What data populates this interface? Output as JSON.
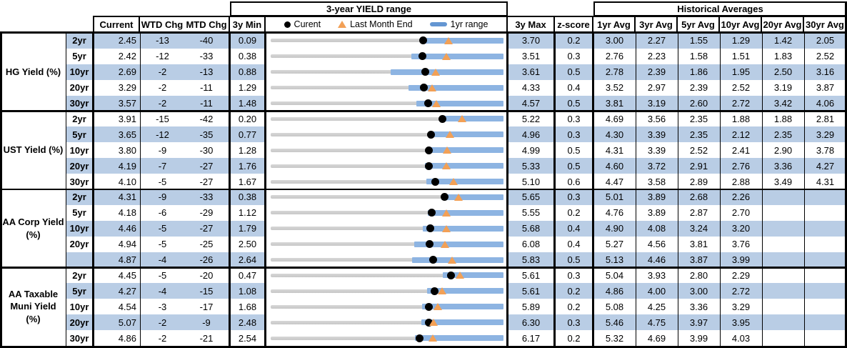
{
  "header": {
    "chart_title": "3-year YIELD range",
    "historical_title": "Historical Averages",
    "col_current": "Current",
    "col_wtd": "WTD Chg",
    "col_mtd": "MTD Chg",
    "col_min": "3y Min",
    "col_max": "3y Max",
    "col_z": "z-score",
    "avg_cols": [
      "1yr Avg",
      "3yr Avg",
      "5yr Avg",
      "10yr Avg",
      "20yr Avg",
      "30yr Avg"
    ],
    "legend_current": "Curent",
    "legend_last_month": "Last Month End",
    "legend_range": "1yr range"
  },
  "colors": {
    "stripe": "#b9cde5",
    "bar": "#8db4e2",
    "track": "#c8c8c8",
    "dot": "#000000",
    "triangle": "#f2a056",
    "legend_bar": "#6496d2",
    "border": "#000000"
  },
  "chart_data": {
    "type": "table",
    "note": "Each row also renders a dot-range strip: gray track spans 3y Min to 3y Max, blue bar is 1yr range, black dot is Current, orange triangle is Last Month End.",
    "groups": [
      {
        "label": "HG Yield (%)",
        "label_lines": [
          "HG Yield (%)"
        ],
        "rows": [
          {
            "tenor": "2yr",
            "current": "2.45",
            "wtd": "-13",
            "mtd": "-40",
            "min": "0.09",
            "max": "3.70",
            "z": "0.2",
            "avgs": [
              "3.00",
              "2.27",
              "1.55",
              "1.29",
              "1.42",
              "2.05"
            ],
            "marks": {
              "current": 2.45,
              "last_month_end": 2.85,
              "yr1_low": 2.45,
              "yr1_high": 3.7
            }
          },
          {
            "tenor": "5yr",
            "current": "2.42",
            "wtd": "-12",
            "mtd": "-33",
            "min": "0.38",
            "max": "3.51",
            "z": "0.3",
            "avgs": [
              "2.76",
              "2.23",
              "1.58",
              "1.51",
              "1.83",
              "2.52"
            ],
            "marks": {
              "current": 2.42,
              "last_month_end": 2.75,
              "yr1_low": 2.27,
              "yr1_high": 3.51
            }
          },
          {
            "tenor": "10yr",
            "current": "2.69",
            "wtd": "-2",
            "mtd": "-13",
            "min": "0.88",
            "max": "3.61",
            "z": "0.5",
            "avgs": [
              "2.78",
              "2.39",
              "1.86",
              "1.95",
              "2.50",
              "3.16"
            ],
            "marks": {
              "current": 2.69,
              "last_month_end": 2.82,
              "yr1_low": 2.29,
              "yr1_high": 3.61
            }
          },
          {
            "tenor": "20yr",
            "current": "3.29",
            "wtd": "-2",
            "mtd": "-11",
            "min": "1.29",
            "max": "4.33",
            "z": "0.4",
            "avgs": [
              "3.52",
              "2.97",
              "2.39",
              "2.52",
              "3.19",
              "3.87"
            ],
            "marks": {
              "current": 3.29,
              "last_month_end": 3.4,
              "yr1_low": 3.09,
              "yr1_high": 4.33
            }
          },
          {
            "tenor": "30yr",
            "current": "3.57",
            "wtd": "-2",
            "mtd": "-11",
            "min": "1.48",
            "max": "4.57",
            "z": "0.5",
            "avgs": [
              "3.81",
              "3.19",
              "2.60",
              "2.72",
              "3.42",
              "4.06"
            ],
            "marks": {
              "current": 3.57,
              "last_month_end": 3.68,
              "yr1_low": 3.41,
              "yr1_high": 4.57
            }
          }
        ]
      },
      {
        "label": "UST Yield (%)",
        "label_lines": [
          "UST Yield (%)"
        ],
        "rows": [
          {
            "tenor": "2yr",
            "current": "3.91",
            "wtd": "-15",
            "mtd": "-42",
            "min": "0.20",
            "max": "5.22",
            "z": "0.3",
            "avgs": [
              "4.69",
              "3.56",
              "2.35",
              "1.88",
              "1.88",
              "2.81"
            ],
            "marks": {
              "current": 3.91,
              "last_month_end": 4.33,
              "yr1_low": 3.86,
              "yr1_high": 5.22
            }
          },
          {
            "tenor": "5yr",
            "current": "3.65",
            "wtd": "-12",
            "mtd": "-35",
            "min": "0.77",
            "max": "4.96",
            "z": "0.3",
            "avgs": [
              "4.30",
              "3.39",
              "2.35",
              "2.12",
              "2.35",
              "3.29"
            ],
            "marks": {
              "current": 3.65,
              "last_month_end": 4.0,
              "yr1_low": 3.63,
              "yr1_high": 4.96
            }
          },
          {
            "tenor": "10yr",
            "current": "3.80",
            "wtd": "-9",
            "mtd": "-30",
            "min": "1.28",
            "max": "4.99",
            "z": "0.5",
            "avgs": [
              "4.31",
              "3.39",
              "2.52",
              "2.41",
              "2.90",
              "3.78"
            ],
            "marks": {
              "current": 3.8,
              "last_month_end": 4.1,
              "yr1_low": 3.79,
              "yr1_high": 4.99
            }
          },
          {
            "tenor": "20yr",
            "current": "4.19",
            "wtd": "-7",
            "mtd": "-27",
            "min": "1.76",
            "max": "5.33",
            "z": "0.5",
            "avgs": [
              "4.60",
              "3.72",
              "2.91",
              "2.76",
              "3.36",
              "4.27"
            ],
            "marks": {
              "current": 4.19,
              "last_month_end": 4.46,
              "yr1_low": 4.13,
              "yr1_high": 5.33
            }
          },
          {
            "tenor": "30yr",
            "current": "4.10",
            "wtd": "-5",
            "mtd": "-27",
            "min": "1.67",
            "max": "5.10",
            "z": "0.6",
            "avgs": [
              "4.47",
              "3.58",
              "2.89",
              "2.88",
              "3.49",
              "4.31"
            ],
            "marks": {
              "current": 4.1,
              "last_month_end": 4.37,
              "yr1_low": 3.96,
              "yr1_high": 5.1
            }
          }
        ]
      },
      {
        "label": "AA Corp Yield (%)",
        "label_lines": [
          "AA Corp Yield",
          "(%)"
        ],
        "rows": [
          {
            "tenor": "2yr",
            "current": "4.31",
            "wtd": "-9",
            "mtd": "-33",
            "min": "0.38",
            "max": "5.65",
            "z": "0.3",
            "avgs": [
              "5.01",
              "3.89",
              "2.68",
              "2.26",
              "",
              ""
            ],
            "marks": {
              "current": 4.31,
              "last_month_end": 4.64,
              "yr1_low": 4.24,
              "yr1_high": 5.65
            }
          },
          {
            "tenor": "5yr",
            "current": "4.18",
            "wtd": "-6",
            "mtd": "-29",
            "min": "1.12",
            "max": "5.55",
            "z": "0.2",
            "avgs": [
              "4.76",
              "3.89",
              "2.87",
              "2.70",
              "",
              ""
            ],
            "marks": {
              "current": 4.18,
              "last_month_end": 4.47,
              "yr1_low": 4.11,
              "yr1_high": 5.55
            }
          },
          {
            "tenor": "10yr",
            "current": "4.46",
            "wtd": "-5",
            "mtd": "-27",
            "min": "1.79",
            "max": "5.68",
            "z": "0.4",
            "avgs": [
              "4.90",
              "4.08",
              "3.24",
              "3.20",
              "",
              ""
            ],
            "marks": {
              "current": 4.46,
              "last_month_end": 4.73,
              "yr1_low": 4.33,
              "yr1_high": 5.68
            }
          },
          {
            "tenor": "20yr",
            "current": "4.94",
            "wtd": "-5",
            "mtd": "-25",
            "min": "2.50",
            "max": "6.08",
            "z": "0.4",
            "avgs": [
              "5.27",
              "4.56",
              "3.81",
              "3.76",
              "",
              ""
            ],
            "marks": {
              "current": 4.94,
              "last_month_end": 5.19,
              "yr1_low": 4.71,
              "yr1_high": 6.08
            }
          },
          {
            "tenor": "",
            "current": "4.87",
            "wtd": "-4",
            "mtd": "-26",
            "min": "2.64",
            "max": "5.83",
            "z": "0.5",
            "avgs": [
              "5.13",
              "4.46",
              "3.87",
              "3.99",
              "",
              ""
            ],
            "marks": {
              "current": 4.87,
              "last_month_end": 5.13,
              "yr1_low": 4.58,
              "yr1_high": 5.83
            }
          }
        ]
      },
      {
        "label": "AA Taxable Muni Yield (%)",
        "label_lines": [
          "AA Taxable",
          "Muni Yield",
          "(%)"
        ],
        "rows": [
          {
            "tenor": "2yr",
            "current": "4.45",
            "wtd": "-5",
            "mtd": "-20",
            "min": "0.47",
            "max": "5.61",
            "z": "0.3",
            "avgs": [
              "5.04",
              "3.93",
              "2.80",
              "2.29",
              "",
              ""
            ],
            "marks": {
              "current": 4.45,
              "last_month_end": 4.65,
              "yr1_low": 4.27,
              "yr1_high": 5.61
            }
          },
          {
            "tenor": "5yr",
            "current": "4.27",
            "wtd": "-4",
            "mtd": "-15",
            "min": "1.08",
            "max": "5.61",
            "z": "0.2",
            "avgs": [
              "4.86",
              "4.00",
              "3.00",
              "2.72",
              "",
              ""
            ],
            "marks": {
              "current": 4.27,
              "last_month_end": 4.42,
              "yr1_low": 4.13,
              "yr1_high": 5.61
            }
          },
          {
            "tenor": "10yr",
            "current": "4.54",
            "wtd": "-3",
            "mtd": "-17",
            "min": "1.68",
            "max": "5.89",
            "z": "0.2",
            "avgs": [
              "5.08",
              "4.25",
              "3.36",
              "3.29",
              "",
              ""
            ],
            "marks": {
              "current": 4.54,
              "last_month_end": 4.71,
              "yr1_low": 4.42,
              "yr1_high": 5.89
            }
          },
          {
            "tenor": "20yr",
            "current": "5.07",
            "wtd": "-2",
            "mtd": "-9",
            "min": "2.48",
            "max": "6.30",
            "z": "0.3",
            "avgs": [
              "5.46",
              "4.75",
              "3.97",
              "3.95",
              "",
              ""
            ],
            "marks": {
              "current": 5.07,
              "last_month_end": 5.16,
              "yr1_low": 4.95,
              "yr1_high": 6.3
            }
          },
          {
            "tenor": "30yr",
            "current": "4.86",
            "wtd": "-2",
            "mtd": "-21",
            "min": "2.54",
            "max": "6.17",
            "z": "0.2",
            "avgs": [
              "5.32",
              "4.69",
              "3.99",
              "4.03",
              "",
              ""
            ],
            "marks": {
              "current": 4.86,
              "last_month_end": 5.07,
              "yr1_low": 4.79,
              "yr1_high": 6.17
            }
          }
        ]
      }
    ]
  }
}
